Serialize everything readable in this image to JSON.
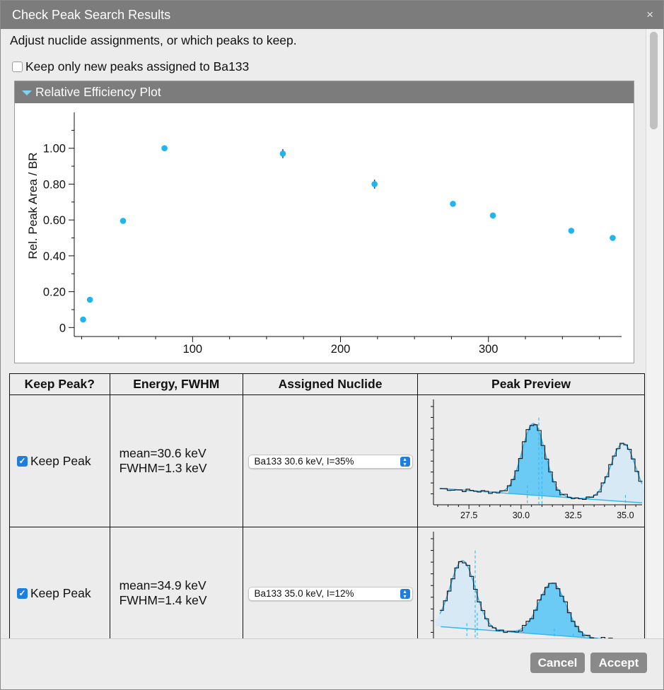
{
  "dialog": {
    "title": "Check Peak Search Results",
    "close_symbol": "×",
    "instructions": "Adjust nuclide assignments, or which peaks to keep.",
    "keep_only_label": "Keep only new peaks assigned to Ba133"
  },
  "panel": {
    "title": "Relative Efficiency Plot"
  },
  "chart_data": {
    "type": "scatter",
    "ylabel": "Rel. Peak Area / BR",
    "xlabel": "",
    "xlim": [
      20,
      390
    ],
    "ylim": [
      -0.05,
      1.2
    ],
    "x_ticks": [
      100,
      200,
      300
    ],
    "y_ticks": [
      0,
      0.2,
      0.4,
      0.6,
      0.8,
      1.0
    ],
    "y_tick_labels": [
      "0",
      "0.20",
      "0.40",
      "0.60",
      "0.80",
      "1.00"
    ],
    "points": [
      {
        "x": 26,
        "y": 0.045,
        "err": 0
      },
      {
        "x": 30.6,
        "y": 0.155,
        "err": 0
      },
      {
        "x": 53,
        "y": 0.595,
        "err": 0
      },
      {
        "x": 81,
        "y": 1.0,
        "err": 0
      },
      {
        "x": 161,
        "y": 0.97,
        "err": 0.025
      },
      {
        "x": 223,
        "y": 0.8,
        "err": 0.025
      },
      {
        "x": 276,
        "y": 0.69,
        "err": 0
      },
      {
        "x": 303,
        "y": 0.625,
        "err": 0
      },
      {
        "x": 356,
        "y": 0.54,
        "err": 0
      },
      {
        "x": 384,
        "y": 0.5,
        "err": 0
      }
    ],
    "color": "#1fb5f0"
  },
  "table": {
    "headers": [
      "Keep Peak?",
      "Energy, FWHM",
      "Assigned Nuclide",
      "Peak Preview"
    ],
    "rows": [
      {
        "keep_label": "Keep Peak",
        "keep_checked": true,
        "mean": "mean=30.6 keV",
        "fwhm": "FWHM=1.3 keV",
        "nuclide": "Ba133 30.6 keV, I=35%",
        "preview": {
          "x_range": [
            25.8,
            35.8
          ],
          "x_ticks": [
            27.5,
            30.0,
            32.5,
            35.0
          ],
          "x_tick_labels": [
            "27.5",
            "30.0",
            "32.5",
            "35.0"
          ]
        }
      },
      {
        "keep_label": "Keep Peak",
        "keep_checked": true,
        "mean": "mean=34.9 keV",
        "fwhm": "FWHM=1.4 keV",
        "nuclide": "Ba133 35.0 keV, I=12%",
        "preview": {
          "x_range": [
            33.5,
            43.5
          ],
          "x_ticks": [],
          "x_tick_labels": []
        }
      }
    ]
  },
  "buttons": {
    "cancel": "Cancel",
    "accept": "Accept"
  }
}
